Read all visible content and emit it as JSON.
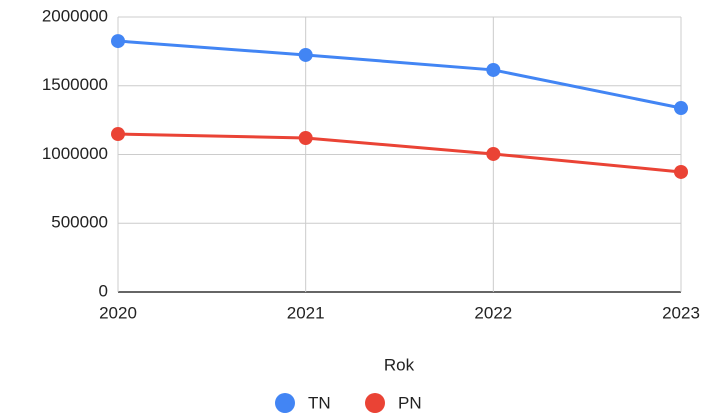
{
  "chart_data": {
    "type": "line",
    "x": [
      2020,
      2021,
      2022,
      2023
    ],
    "xlim": [
      2020,
      2023
    ],
    "xticks": [
      2020,
      2021,
      2022,
      2023
    ],
    "ylim": [
      0,
      2000000
    ],
    "yticks": [
      0,
      500000,
      1000000,
      1500000,
      2000000
    ],
    "x_label": "Rok",
    "grid": true,
    "legend": "bottom",
    "series": [
      {
        "name": "TN",
        "color": "#4285f4",
        "values": [
          1825000,
          1724000,
          1615000,
          1338000
        ]
      },
      {
        "name": "PN",
        "color": "#ea4335",
        "values": [
          1149000,
          1120000,
          1004000,
          873000
        ]
      }
    ]
  }
}
